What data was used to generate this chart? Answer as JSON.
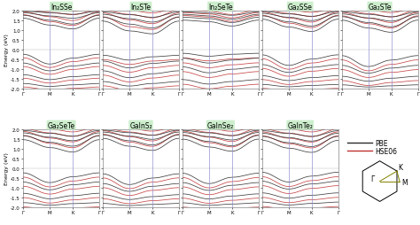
{
  "panels_row1": [
    "In₂SSe",
    "In₂STe",
    "In₂SeTe",
    "Ga₂SSe",
    "Ga₂STe"
  ],
  "panels_row2": [
    "Ga₂SeTe",
    "GaInS₂",
    "GaInSe₂",
    "GaInTe₂"
  ],
  "kpoint_labels": [
    "Γ",
    "M",
    "K",
    "Γ"
  ],
  "ylim": [
    -2.0,
    2.0
  ],
  "yticks": [
    -2.0,
    -1.5,
    -1.0,
    -0.5,
    0.0,
    0.5,
    1.0,
    1.5,
    2.0
  ],
  "color_pbe": "#2a2a2a",
  "color_hse": "#c03030",
  "color_vline": "#8888cc",
  "bg_label": "#cceecc",
  "title_fontsize": 5.5,
  "axis_fontsize": 4.5,
  "tick_fontsize": 4.0
}
